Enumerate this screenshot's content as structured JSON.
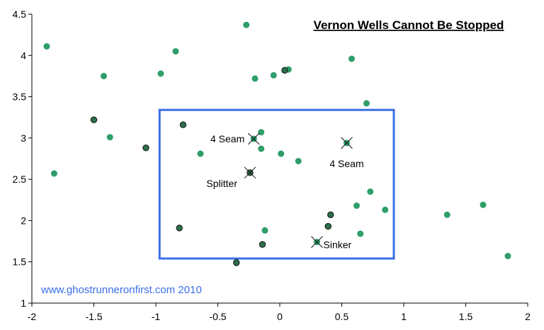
{
  "chart_data": {
    "type": "scatter",
    "title": "Vernon Wells Cannot Be Stopped",
    "xlabel": "",
    "ylabel": "",
    "xlim": [
      -2,
      2
    ],
    "ylim": [
      1,
      4.5
    ],
    "x_ticks": [
      "-2",
      "-1.5",
      "-1",
      "-0.5",
      "0",
      "0.5",
      "1",
      "1.5",
      "2"
    ],
    "y_ticks": [
      "1",
      "1.5",
      "2",
      "2.5",
      "3",
      "3.5",
      "4",
      "4.5"
    ],
    "grid": false,
    "legend": "none",
    "colors": {
      "green_point": "#2e9e6a",
      "dark_point": "#2d6f4a",
      "dark_point_outline": "#111111",
      "box": "#3b6ee6",
      "watermark": "#3b6ee6",
      "axis": "#000000"
    },
    "series": [
      {
        "style": "green",
        "points": [
          [
            -1.88,
            4.11
          ],
          [
            -1.82,
            2.57
          ],
          [
            -1.42,
            3.75
          ],
          [
            -1.37,
            3.01
          ],
          [
            -0.96,
            3.78
          ],
          [
            -0.84,
            4.05
          ],
          [
            -0.64,
            2.81
          ],
          [
            -0.27,
            4.37
          ],
          [
            -0.2,
            3.72
          ],
          [
            -0.15,
            3.07
          ],
          [
            -0.15,
            2.87
          ],
          [
            -0.12,
            1.88
          ],
          [
            -0.05,
            3.76
          ],
          [
            0.01,
            2.81
          ],
          [
            0.07,
            3.83
          ],
          [
            0.15,
            2.72
          ],
          [
            0.58,
            3.96
          ],
          [
            0.62,
            2.18
          ],
          [
            0.65,
            1.84
          ],
          [
            0.7,
            3.42
          ],
          [
            0.73,
            2.35
          ],
          [
            0.85,
            2.13
          ],
          [
            1.35,
            2.07
          ],
          [
            1.64,
            2.19
          ],
          [
            1.84,
            1.57
          ]
        ]
      },
      {
        "style": "dark",
        "points": [
          [
            -1.5,
            3.22
          ],
          [
            -1.08,
            2.88
          ],
          [
            -0.78,
            3.16
          ],
          [
            -0.81,
            1.91
          ],
          [
            -0.35,
            1.49
          ],
          [
            -0.14,
            1.71
          ],
          [
            0.04,
            3.82
          ],
          [
            0.39,
            1.93
          ],
          [
            0.41,
            2.07
          ]
        ]
      }
    ],
    "annotations": [
      {
        "label": "4 Seam",
        "x": -0.21,
        "y": 2.99,
        "style": "green"
      },
      {
        "label": "4 Seam",
        "x": 0.54,
        "y": 2.94,
        "style": "green"
      },
      {
        "label": "Splitter",
        "x": -0.24,
        "y": 2.58,
        "style": "dark"
      },
      {
        "label": "Sinker",
        "x": 0.3,
        "y": 1.74,
        "style": "green"
      }
    ],
    "box": {
      "x0": -0.97,
      "x1": 0.92,
      "y0": 1.54,
      "y1": 3.34
    },
    "watermark": "www.ghostrunneronfirst.com 2010"
  }
}
